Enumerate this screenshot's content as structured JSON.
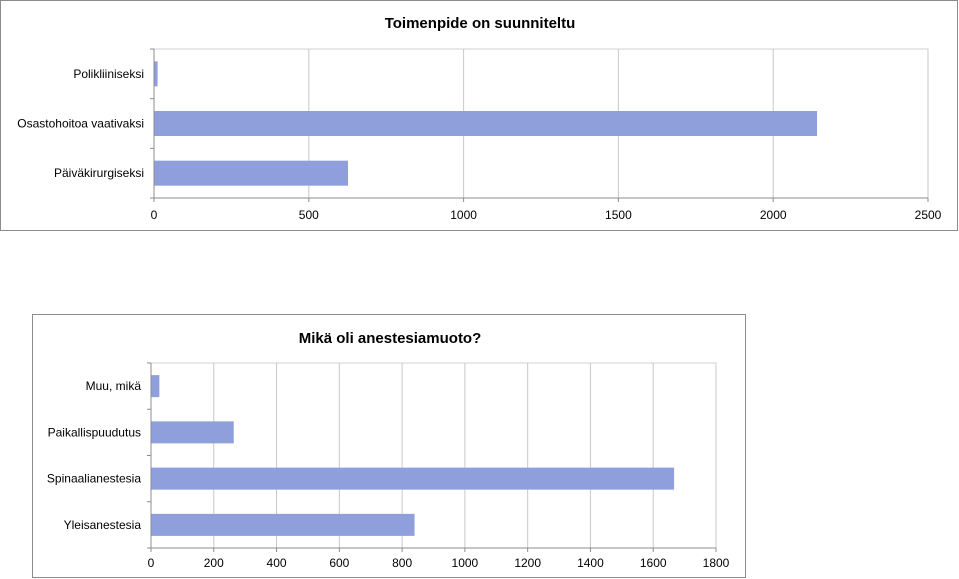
{
  "chart_data": [
    {
      "type": "bar",
      "orientation": "horizontal",
      "title": "Toimenpide on suunniteltu",
      "categories": [
        "Polikliiniseksi",
        "Osastohoitoa vaativaksi",
        "Päiväkirurgiseksi"
      ],
      "values": [
        10,
        2140,
        625
      ],
      "xlim": [
        0,
        2500
      ],
      "xticks": [
        0,
        500,
        1000,
        1500,
        2000,
        2500
      ],
      "xtick_labels": [
        "0",
        "500",
        "1000",
        "1500",
        "2000",
        "2500"
      ],
      "grid": true,
      "legend": "none",
      "bar_color": "#8f9fdb"
    },
    {
      "type": "bar",
      "orientation": "horizontal",
      "title": "Mikä oli anestesiamuoto?",
      "categories": [
        "Muu, mikä",
        "Paikallispuudutus",
        "Spinaalianestesia",
        "Yleisanestesia"
      ],
      "values": [
        25,
        262,
        1665,
        838
      ],
      "xlim": [
        0,
        1800
      ],
      "xticks": [
        0,
        200,
        400,
        600,
        800,
        1000,
        1200,
        1400,
        1600,
        1800
      ],
      "xtick_labels": [
        "0",
        "200",
        "400",
        "600",
        "800",
        "1000",
        "1200",
        "1400",
        "1600",
        "1800"
      ],
      "grid": true,
      "legend": "none",
      "bar_color": "#8f9fdb"
    }
  ]
}
